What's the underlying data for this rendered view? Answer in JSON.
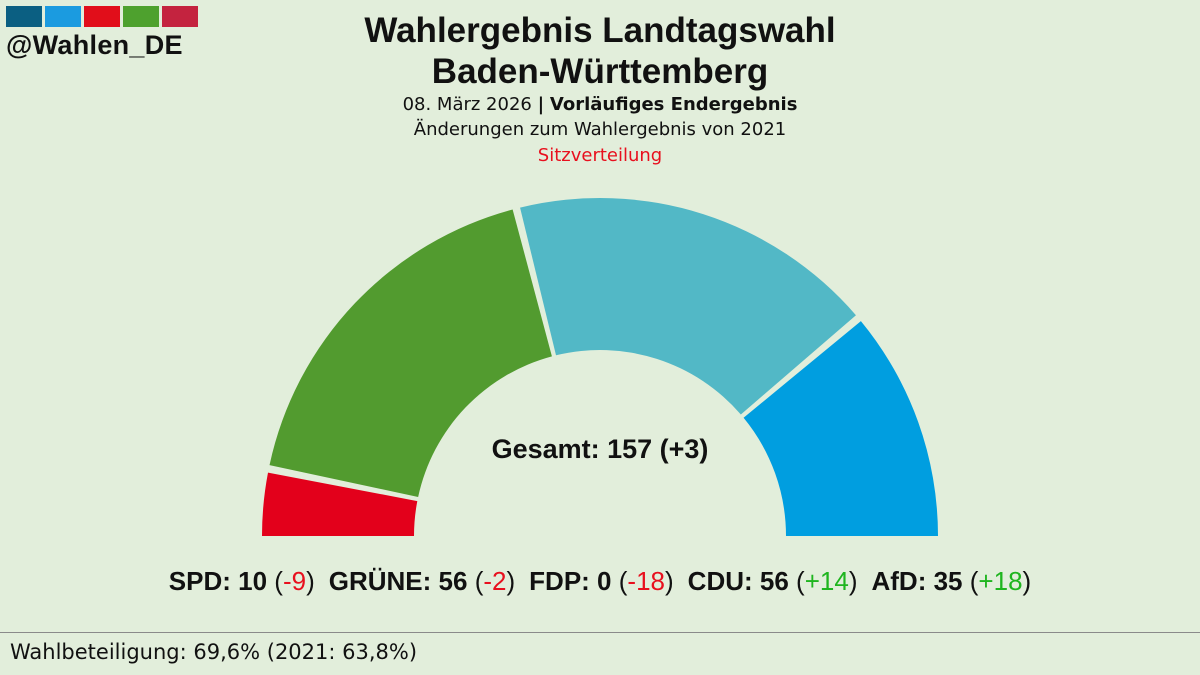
{
  "logo": {
    "colors": [
      "#0b5f82",
      "#1b9be0",
      "#e10e1a",
      "#4ea12e",
      "#c4233f"
    ],
    "handle": "@Wahlen_DE"
  },
  "header": {
    "title_line1": "Wahlergebnis Landtagswahl",
    "title_line2": "Baden-Württemberg",
    "date": "08. März 2026",
    "separator": "|",
    "status": "Vorläufiges Endergebnis",
    "change_note": "Änderungen zum Wahlergebnis von 2021",
    "chart_label": "Sitzverteilung"
  },
  "chart_data": {
    "type": "pie",
    "variant": "parliament-semicircle",
    "title": "Sitzverteilung",
    "total_label": "Gesamt: 157 (+3)",
    "total": 157,
    "total_change": 3,
    "parties": [
      {
        "name": "SPD",
        "seats": 10,
        "change": -9,
        "change_label": "-9",
        "color": "#e3001b"
      },
      {
        "name": "GRÜNE",
        "seats": 56,
        "change": -2,
        "change_label": "-2",
        "color": "#529b2f"
      },
      {
        "name": "FDP",
        "seats": 0,
        "change": -18,
        "change_label": "-18",
        "color": "#ffed00"
      },
      {
        "name": "CDU",
        "seats": 56,
        "change": 14,
        "change_label": "+14",
        "color": "#52b8c6"
      },
      {
        "name": "AfD",
        "seats": 35,
        "change": 18,
        "change_label": "+18",
        "color": "#009ee0"
      }
    ]
  },
  "footer": {
    "turnout": "Wahlbeteiligung: 69,6% (2021: 63,8%)"
  }
}
